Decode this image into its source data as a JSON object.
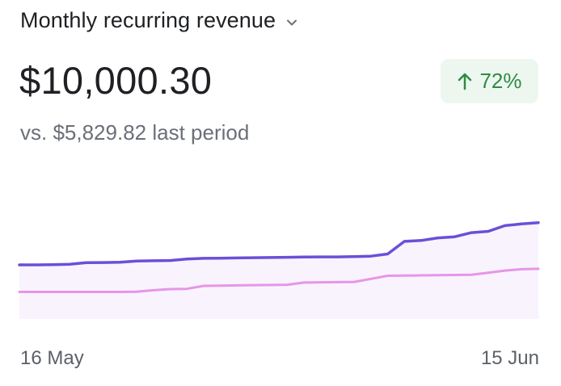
{
  "widget": {
    "title": "Monthly recurring revenue",
    "value": "$10,000.30",
    "change": "72%",
    "comparison": "vs. $5,829.82 last period"
  },
  "icons": {
    "selector": "chevron-down-icon",
    "change": "arrow-up-icon"
  },
  "colors": {
    "current_line": "#6b4fd8",
    "previous_line": "#e596e8",
    "area_fill": "#f9f3fd",
    "positive_bg": "#edf7ef",
    "positive_text": "#2f8a45"
  },
  "chart_data": {
    "type": "line",
    "x_start_label": "16 May",
    "x_end_label": "15 Jun",
    "series": [
      {
        "values": [
          5240,
          5240,
          5245,
          5255,
          5290,
          5295,
          5300,
          5330,
          5335,
          5340,
          5375,
          5390,
          5395,
          5400,
          5405,
          5410,
          5415,
          5420,
          5425,
          5425,
          5430,
          5440,
          5490,
          5780,
          5800,
          5860,
          5885,
          5980,
          6010,
          6140,
          6180,
          6210
        ]
      },
      {
        "values": [
          4620,
          4620,
          4620,
          4620,
          4620,
          4620,
          4620,
          4625,
          4660,
          4685,
          4690,
          4760,
          4765,
          4770,
          4775,
          4780,
          4785,
          4835,
          4840,
          4845,
          4850,
          4920,
          4990,
          4995,
          5000,
          5005,
          5010,
          5015,
          5060,
          5110,
          5140,
          5150
        ]
      }
    ],
    "ylim": [
      4000,
      6500
    ],
    "grid": false,
    "legend": "none"
  }
}
